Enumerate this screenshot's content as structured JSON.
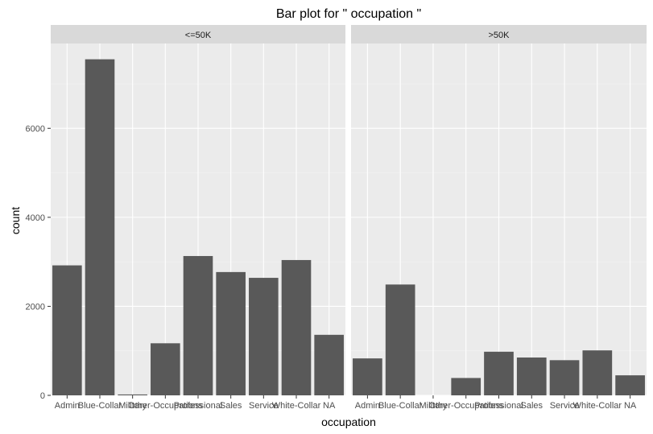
{
  "chart_data": {
    "type": "bar",
    "title": "Bar plot for \" occupation \"",
    "xlabel": "occupation",
    "ylabel": "count",
    "ylim": [
      0,
      7600
    ],
    "yticks": [
      0,
      2000,
      4000,
      6000
    ],
    "y_tick_labels": [
      "0",
      "2000",
      "4000",
      "6000"
    ],
    "categories": [
      "Admin",
      "Blue-Collar",
      "Military",
      "Other-Occupations",
      "Professional",
      "Sales",
      "Service",
      "White-Collar",
      "NA"
    ],
    "panels": [
      {
        "strip_label": "<=50K",
        "values": [
          2920,
          7550,
          20,
          1170,
          3130,
          2770,
          2640,
          3040,
          1360
        ]
      },
      {
        "strip_label": ">50K",
        "values": [
          830,
          2490,
          0,
          390,
          980,
          850,
          790,
          1010,
          450
        ]
      }
    ],
    "bar_color": "#595959",
    "panel_background": "#ebebeb",
    "strip_background": "#d9d9d9",
    "grid": true
  }
}
